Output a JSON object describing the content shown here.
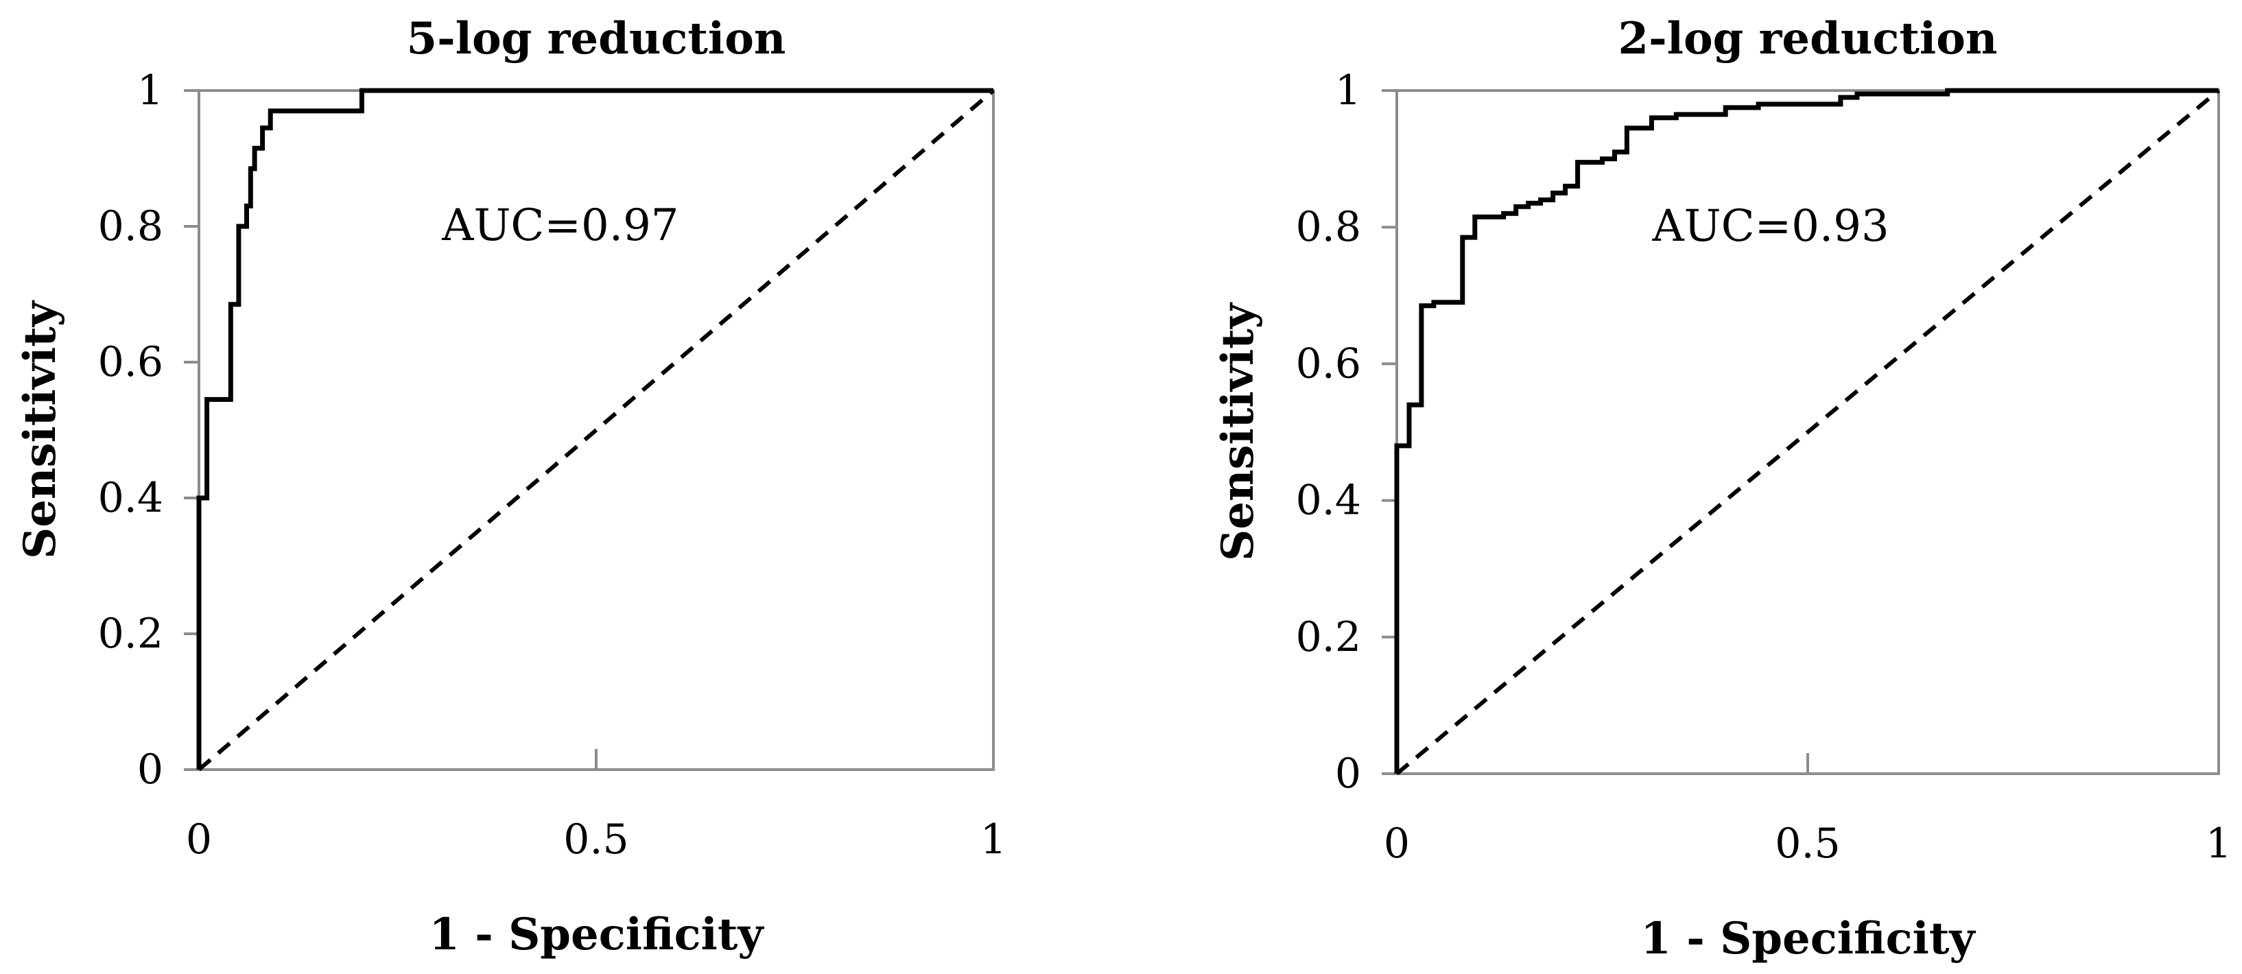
{
  "chart_data": [
    {
      "type": "line",
      "title": "5-log reduction",
      "xlabel": "1 - Specificity",
      "ylabel": "Sensitivity",
      "xlim": [
        0,
        1
      ],
      "ylim": [
        0,
        1
      ],
      "x_ticks": [
        "0",
        "0.5",
        "1"
      ],
      "y_ticks": [
        "0",
        "0.2",
        "0.4",
        "0.6",
        "0.8",
        "1"
      ],
      "grid": false,
      "legend": "none",
      "annotation": "AUC=0.97",
      "series": [
        {
          "style": "solid",
          "x": [
            0,
            0,
            0.01,
            0.01,
            0.04,
            0.04,
            0.05,
            0.05,
            0.06,
            0.06,
            0.065,
            0.065,
            0.07,
            0.07,
            0.08,
            0.08,
            0.09,
            0.09,
            0.205,
            0.205,
            1
          ],
          "y": [
            0,
            0.4,
            0.4,
            0.545,
            0.545,
            0.685,
            0.685,
            0.8,
            0.8,
            0.83,
            0.83,
            0.885,
            0.885,
            0.915,
            0.915,
            0.945,
            0.945,
            0.97,
            0.97,
            1,
            1
          ]
        },
        {
          "style": "dashed",
          "x": [
            0,
            1
          ],
          "y": [
            0,
            1
          ]
        }
      ]
    },
    {
      "type": "line",
      "title": "2-log reduction",
      "xlabel": "1 - Specificity",
      "ylabel": "Sensitivity",
      "xlim": [
        0,
        1
      ],
      "ylim": [
        0,
        1
      ],
      "x_ticks": [
        "0",
        "0.5",
        "1"
      ],
      "y_ticks": [
        "0",
        "0.2",
        "0.4",
        "0.6",
        "0.8",
        "1"
      ],
      "grid": false,
      "legend": "none",
      "annotation": "AUC=0.93",
      "series": [
        {
          "style": "solid",
          "x": [
            0,
            0,
            0.015,
            0.015,
            0.03,
            0.03,
            0.045,
            0.045,
            0.08,
            0.08,
            0.095,
            0.095,
            0.13,
            0.13,
            0.145,
            0.145,
            0.16,
            0.16,
            0.175,
            0.175,
            0.19,
            0.19,
            0.205,
            0.205,
            0.22,
            0.22,
            0.25,
            0.25,
            0.265,
            0.265,
            0.28,
            0.28,
            0.31,
            0.31,
            0.34,
            0.34,
            0.4,
            0.4,
            0.44,
            0.44,
            0.54,
            0.54,
            0.56,
            0.56,
            0.67,
            0.67,
            1
          ],
          "y": [
            0,
            0.48,
            0.48,
            0.54,
            0.54,
            0.685,
            0.685,
            0.69,
            0.69,
            0.785,
            0.785,
            0.815,
            0.815,
            0.82,
            0.82,
            0.83,
            0.83,
            0.835,
            0.835,
            0.84,
            0.84,
            0.85,
            0.85,
            0.86,
            0.86,
            0.895,
            0.895,
            0.9,
            0.9,
            0.91,
            0.91,
            0.945,
            0.945,
            0.96,
            0.96,
            0.965,
            0.965,
            0.975,
            0.975,
            0.98,
            0.98,
            0.99,
            0.99,
            0.995,
            0.995,
            1,
            1
          ]
        },
        {
          "style": "dashed",
          "x": [
            0,
            1
          ],
          "y": [
            0,
            1
          ]
        }
      ]
    }
  ]
}
